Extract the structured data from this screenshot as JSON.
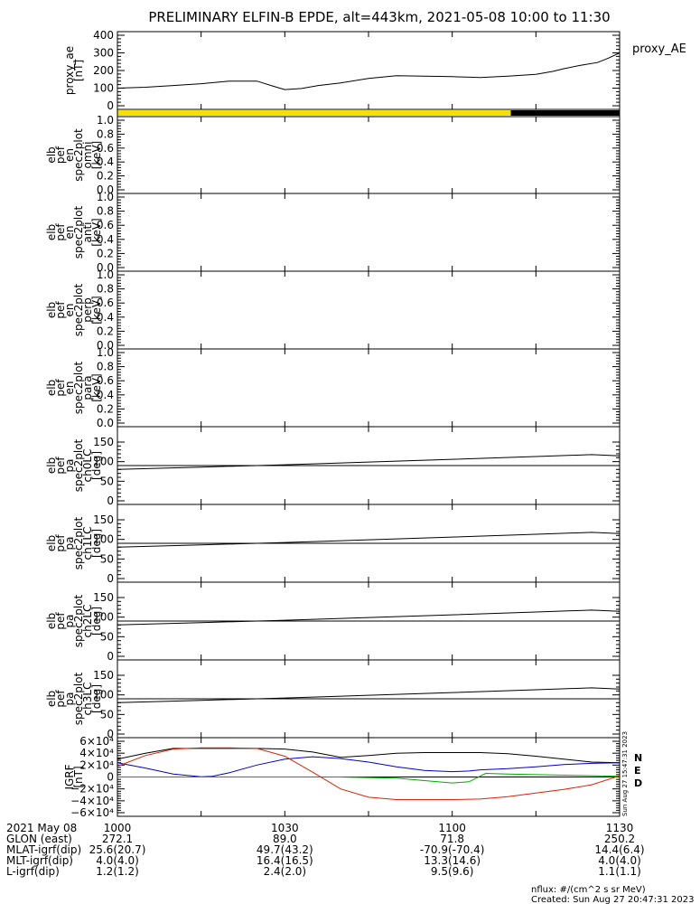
{
  "title": "PRELIMINARY ELFIN-B EPDE, alt=443km, 2021-05-08 10:00 to 11:30",
  "chart_data": [
    {
      "type": "line",
      "ylabel": [
        "proxy_ae",
        "[nT]"
      ],
      "ylim": [
        0,
        400
      ],
      "yticks": [
        "0",
        "100",
        "200",
        "300",
        "400"
      ],
      "series": [
        {
          "name": "proxy_AE",
          "color": "#000000",
          "x": [
            0,
            5,
            10,
            15,
            20,
            25,
            28,
            30,
            33,
            36,
            40,
            45,
            50,
            55,
            60,
            65,
            70,
            75,
            78,
            80,
            83,
            86,
            88,
            90
          ],
          "y": [
            100,
            105,
            115,
            125,
            140,
            140,
            110,
            92,
            98,
            115,
            130,
            155,
            170,
            168,
            165,
            160,
            168,
            178,
            195,
            210,
            230,
            245,
            270,
            300
          ]
        }
      ]
    },
    {
      "type": "bar",
      "name": "science-zone-bar",
      "segments": [
        {
          "x0": 0,
          "x1": 70.5,
          "color": "#f5e000"
        },
        {
          "x0": 70.5,
          "x1": 90,
          "color": "#000000"
        }
      ]
    },
    {
      "type": "line",
      "ylabel": [
        "elb",
        "pef",
        "en",
        "spec2plot",
        "omni",
        "[keV]"
      ],
      "ylim": [
        0,
        1
      ],
      "yticks": [
        "0.0",
        "0.2",
        "0.4",
        "0.6",
        "0.8",
        "1.0"
      ],
      "series": []
    },
    {
      "type": "line",
      "ylabel": [
        "elb",
        "pef",
        "en",
        "spec2plot",
        "anti",
        "[keV]"
      ],
      "ylim": [
        0,
        1
      ],
      "yticks": [
        "0.0",
        "0.2",
        "0.4",
        "0.6",
        "0.8",
        "1.0"
      ],
      "series": []
    },
    {
      "type": "line",
      "ylabel": [
        "elb",
        "pef",
        "en",
        "spec2plot",
        "perp",
        "[keV]"
      ],
      "ylim": [
        0,
        1
      ],
      "yticks": [
        "0.0",
        "0.2",
        "0.4",
        "0.6",
        "0.8",
        "1.0"
      ],
      "series": []
    },
    {
      "type": "line",
      "ylabel": [
        "elb",
        "pef",
        "en",
        "spec2plot",
        "para",
        "[keV]"
      ],
      "ylim": [
        0,
        1
      ],
      "yticks": [
        "0.0",
        "0.2",
        "0.4",
        "0.6",
        "0.8",
        "1.0"
      ],
      "series": []
    },
    {
      "type": "line",
      "ylabel": [
        "elb",
        "pef",
        "pa",
        "spec2plot",
        "ch0LC",
        "[deg]"
      ],
      "ylim": [
        0,
        180
      ],
      "yticks": [
        "0",
        "50",
        "100",
        "150"
      ],
      "hline": 90,
      "series": [
        {
          "color": "#000000",
          "x": [
            0,
            15,
            30,
            45,
            60,
            75,
            85,
            90
          ],
          "y": [
            80,
            86,
            92,
            99,
            106,
            113,
            118,
            115
          ]
        }
      ]
    },
    {
      "type": "line",
      "ylabel": [
        "elb",
        "pef",
        "pa",
        "spec2plot",
        "ch1LC",
        "[deg]"
      ],
      "ylim": [
        0,
        180
      ],
      "yticks": [
        "0",
        "50",
        "100",
        "150"
      ],
      "hline": 90,
      "series": [
        {
          "color": "#000000",
          "x": [
            0,
            15,
            30,
            45,
            60,
            75,
            85,
            90
          ],
          "y": [
            80,
            86,
            92,
            99,
            106,
            113,
            118,
            115
          ]
        }
      ]
    },
    {
      "type": "line",
      "ylabel": [
        "elb",
        "pef",
        "pa",
        "spec2plot",
        "ch2LC",
        "[deg]"
      ],
      "ylim": [
        0,
        180
      ],
      "yticks": [
        "0",
        "50",
        "100",
        "150"
      ],
      "hline": 90,
      "series": [
        {
          "color": "#000000",
          "x": [
            0,
            15,
            30,
            45,
            60,
            75,
            85,
            90
          ],
          "y": [
            80,
            86,
            92,
            99,
            106,
            113,
            118,
            115
          ]
        }
      ]
    },
    {
      "type": "line",
      "ylabel": [
        "elb",
        "pef",
        "pa",
        "spec2plot",
        "ch3LC",
        "[deg]"
      ],
      "ylim": [
        0,
        180
      ],
      "yticks": [
        "0",
        "50",
        "100",
        "150"
      ],
      "hline": 90,
      "series": [
        {
          "color": "#000000",
          "x": [
            0,
            15,
            30,
            45,
            60,
            75,
            85,
            90
          ],
          "y": [
            80,
            86,
            92,
            99,
            106,
            113,
            118,
            115
          ]
        }
      ]
    },
    {
      "type": "line",
      "ylabel": [
        "IGRF",
        "[nT]"
      ],
      "ylim": [
        -60000,
        60000
      ],
      "yticks": [
        {
          "value": -60000,
          "label": "−6×10⁴"
        },
        {
          "value": -40000,
          "label": "−4×10⁴"
        },
        {
          "value": -20000,
          "label": "−2×10⁴"
        },
        {
          "value": 0,
          "label": "0"
        },
        {
          "value": 20000,
          "label": "2×10⁴"
        },
        {
          "value": 40000,
          "label": "4×10⁴"
        },
        {
          "value": 60000,
          "label": "6×10⁴"
        }
      ],
      "legend": [
        "N",
        "E",
        "D"
      ],
      "legend_colors": [
        "#0000cc",
        "#00aa00",
        "#dd2200"
      ],
      "series": [
        {
          "color": "#000000",
          "x": [
            0,
            5,
            10,
            15,
            20,
            25,
            30,
            35,
            40,
            45,
            50,
            55,
            60,
            65,
            70,
            75,
            80,
            85,
            90
          ],
          "y": [
            30000,
            40000,
            48000,
            48000,
            48000,
            48000,
            47000,
            42000,
            33000,
            36000,
            40000,
            41000,
            41000,
            41000,
            39000,
            35000,
            30000,
            25000,
            24000
          ]
        },
        {
          "color": "#0000cc",
          "x": [
            0,
            5,
            10,
            15,
            17,
            20,
            25,
            30,
            35,
            40,
            45,
            50,
            55,
            60,
            63,
            65,
            70,
            75,
            80,
            85,
            90
          ],
          "y": [
            24000,
            15000,
            5000,
            300,
            1000,
            7000,
            20000,
            30000,
            34000,
            31000,
            25000,
            17000,
            11000,
            9000,
            10000,
            12000,
            14000,
            17000,
            21000,
            23000,
            24000
          ]
        },
        {
          "color": "#00aa00",
          "x": [
            0,
            20,
            40,
            50,
            55,
            60,
            63,
            66,
            70,
            80,
            90
          ],
          "y": [
            0,
            0,
            0,
            -2000,
            -6000,
            -10000,
            -8000,
            6000,
            5000,
            3000,
            1000
          ]
        },
        {
          "color": "#dd2200",
          "x": [
            0,
            5,
            10,
            15,
            20,
            25,
            30,
            35,
            40,
            45,
            50,
            55,
            60,
            65,
            70,
            75,
            80,
            85,
            90
          ],
          "y": [
            18000,
            36000,
            47000,
            49000,
            49000,
            48000,
            35000,
            8000,
            -20000,
            -34000,
            -38000,
            -38000,
            -38000,
            -37000,
            -33000,
            -27000,
            -21000,
            -13000,
            2000
          ]
        }
      ]
    }
  ],
  "side_label": "proxy_AE",
  "side_stamp": "Sun Aug 27 15:47:31 2023",
  "x_ticks_minutes": [
    0,
    30,
    60,
    90
  ],
  "bottom_table": {
    "rows": [
      {
        "label": "2021 May 08",
        "values": [
          "1000",
          "1030",
          "1100",
          "1130"
        ]
      },
      {
        "label": "GLON (east)",
        "values": [
          "272.1",
          "89.0",
          "71.8",
          "250.2"
        ]
      },
      {
        "label": "MLAT-igrf(dip)",
        "values": [
          "25.6(20.7)",
          "49.7(43.2)",
          "-70.9(-70.4)",
          "14.4(6.4)"
        ]
      },
      {
        "label": "MLT-igrf(dip)",
        "values": [
          "4.0(4.0)",
          "16.4(16.5)",
          "13.3(14.6)",
          "4.0(4.0)"
        ]
      },
      {
        "label": "L-igrf(dip)",
        "values": [
          "1.2(1.2)",
          "2.4(2.0)",
          "9.5(9.6)",
          "1.1(1.1)"
        ]
      }
    ]
  },
  "footer": {
    "nflux": "nflux: #/(cm^2 s sr MeV)",
    "created": "Created: Sun Aug 27 20:47:31 2023"
  }
}
